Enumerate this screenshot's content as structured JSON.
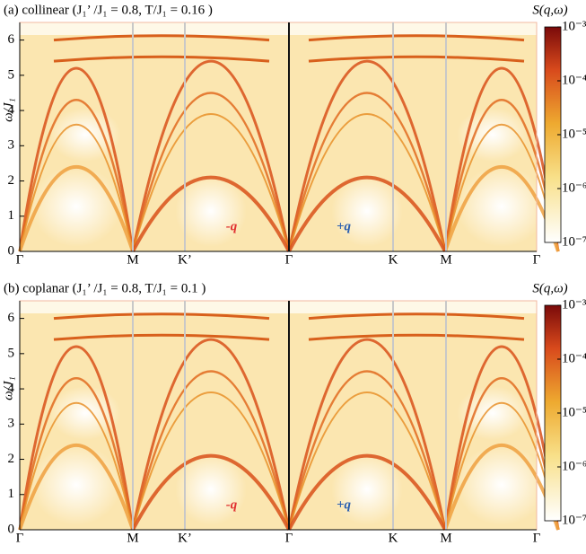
{
  "chart_data": [
    {
      "type": "heatmap",
      "title": "(a)  collinear  (J₁’ /J₁ = 0.8,  T/J₁ = 0.16 )",
      "ylabel": "ω/J₁",
      "ylim": [
        0,
        6.5
      ],
      "yticks": [
        0,
        1,
        2,
        3,
        4,
        5,
        6
      ],
      "categories": [
        "Γ",
        "M",
        "K’",
        "Γ",
        "K",
        "M",
        "Γ"
      ],
      "colorbar": {
        "label": "S(q,ω)",
        "log": true,
        "clim": [
          1e-07,
          0.001
        ],
        "ticks": [
          {
            "value": 0.001,
            "label": "10⁻³"
          },
          {
            "value": 0.0001,
            "label": "10⁻⁴"
          },
          {
            "value": 1e-05,
            "label": "10⁻⁵"
          },
          {
            "value": 1e-06,
            "label": "10⁻⁶"
          },
          {
            "value": 1e-07,
            "label": "10⁻⁷"
          }
        ]
      },
      "annotations": [
        {
          "text": "-q",
          "color": "#e03030"
        },
        {
          "text": "+q",
          "color": "#2a5fb0"
        }
      ]
    },
    {
      "type": "heatmap",
      "title": "(b)  coplanar  (J₁’ /J₁ = 0.8,  T/J₁ = 0.1 )",
      "ylabel": "ω/J₁",
      "ylim": [
        0,
        6.5
      ],
      "yticks": [
        0,
        1,
        2,
        3,
        4,
        5,
        6
      ],
      "categories": [
        "Γ",
        "M",
        "K’",
        "Γ",
        "K",
        "M",
        "Γ"
      ],
      "colorbar": {
        "label": "S(q,ω)",
        "log": true,
        "clim": [
          1e-07,
          0.001
        ],
        "ticks": [
          {
            "value": 0.001,
            "label": "10⁻³"
          },
          {
            "value": 0.0001,
            "label": "10⁻⁴"
          },
          {
            "value": 1e-05,
            "label": "10⁻⁵"
          },
          {
            "value": 1e-06,
            "label": "10⁻⁶"
          },
          {
            "value": 1e-07,
            "label": "10⁻⁷"
          }
        ]
      },
      "annotations": [
        {
          "text": "-q",
          "color": "#e03030"
        },
        {
          "text": "+q",
          "color": "#2a5fb0"
        }
      ]
    }
  ]
}
